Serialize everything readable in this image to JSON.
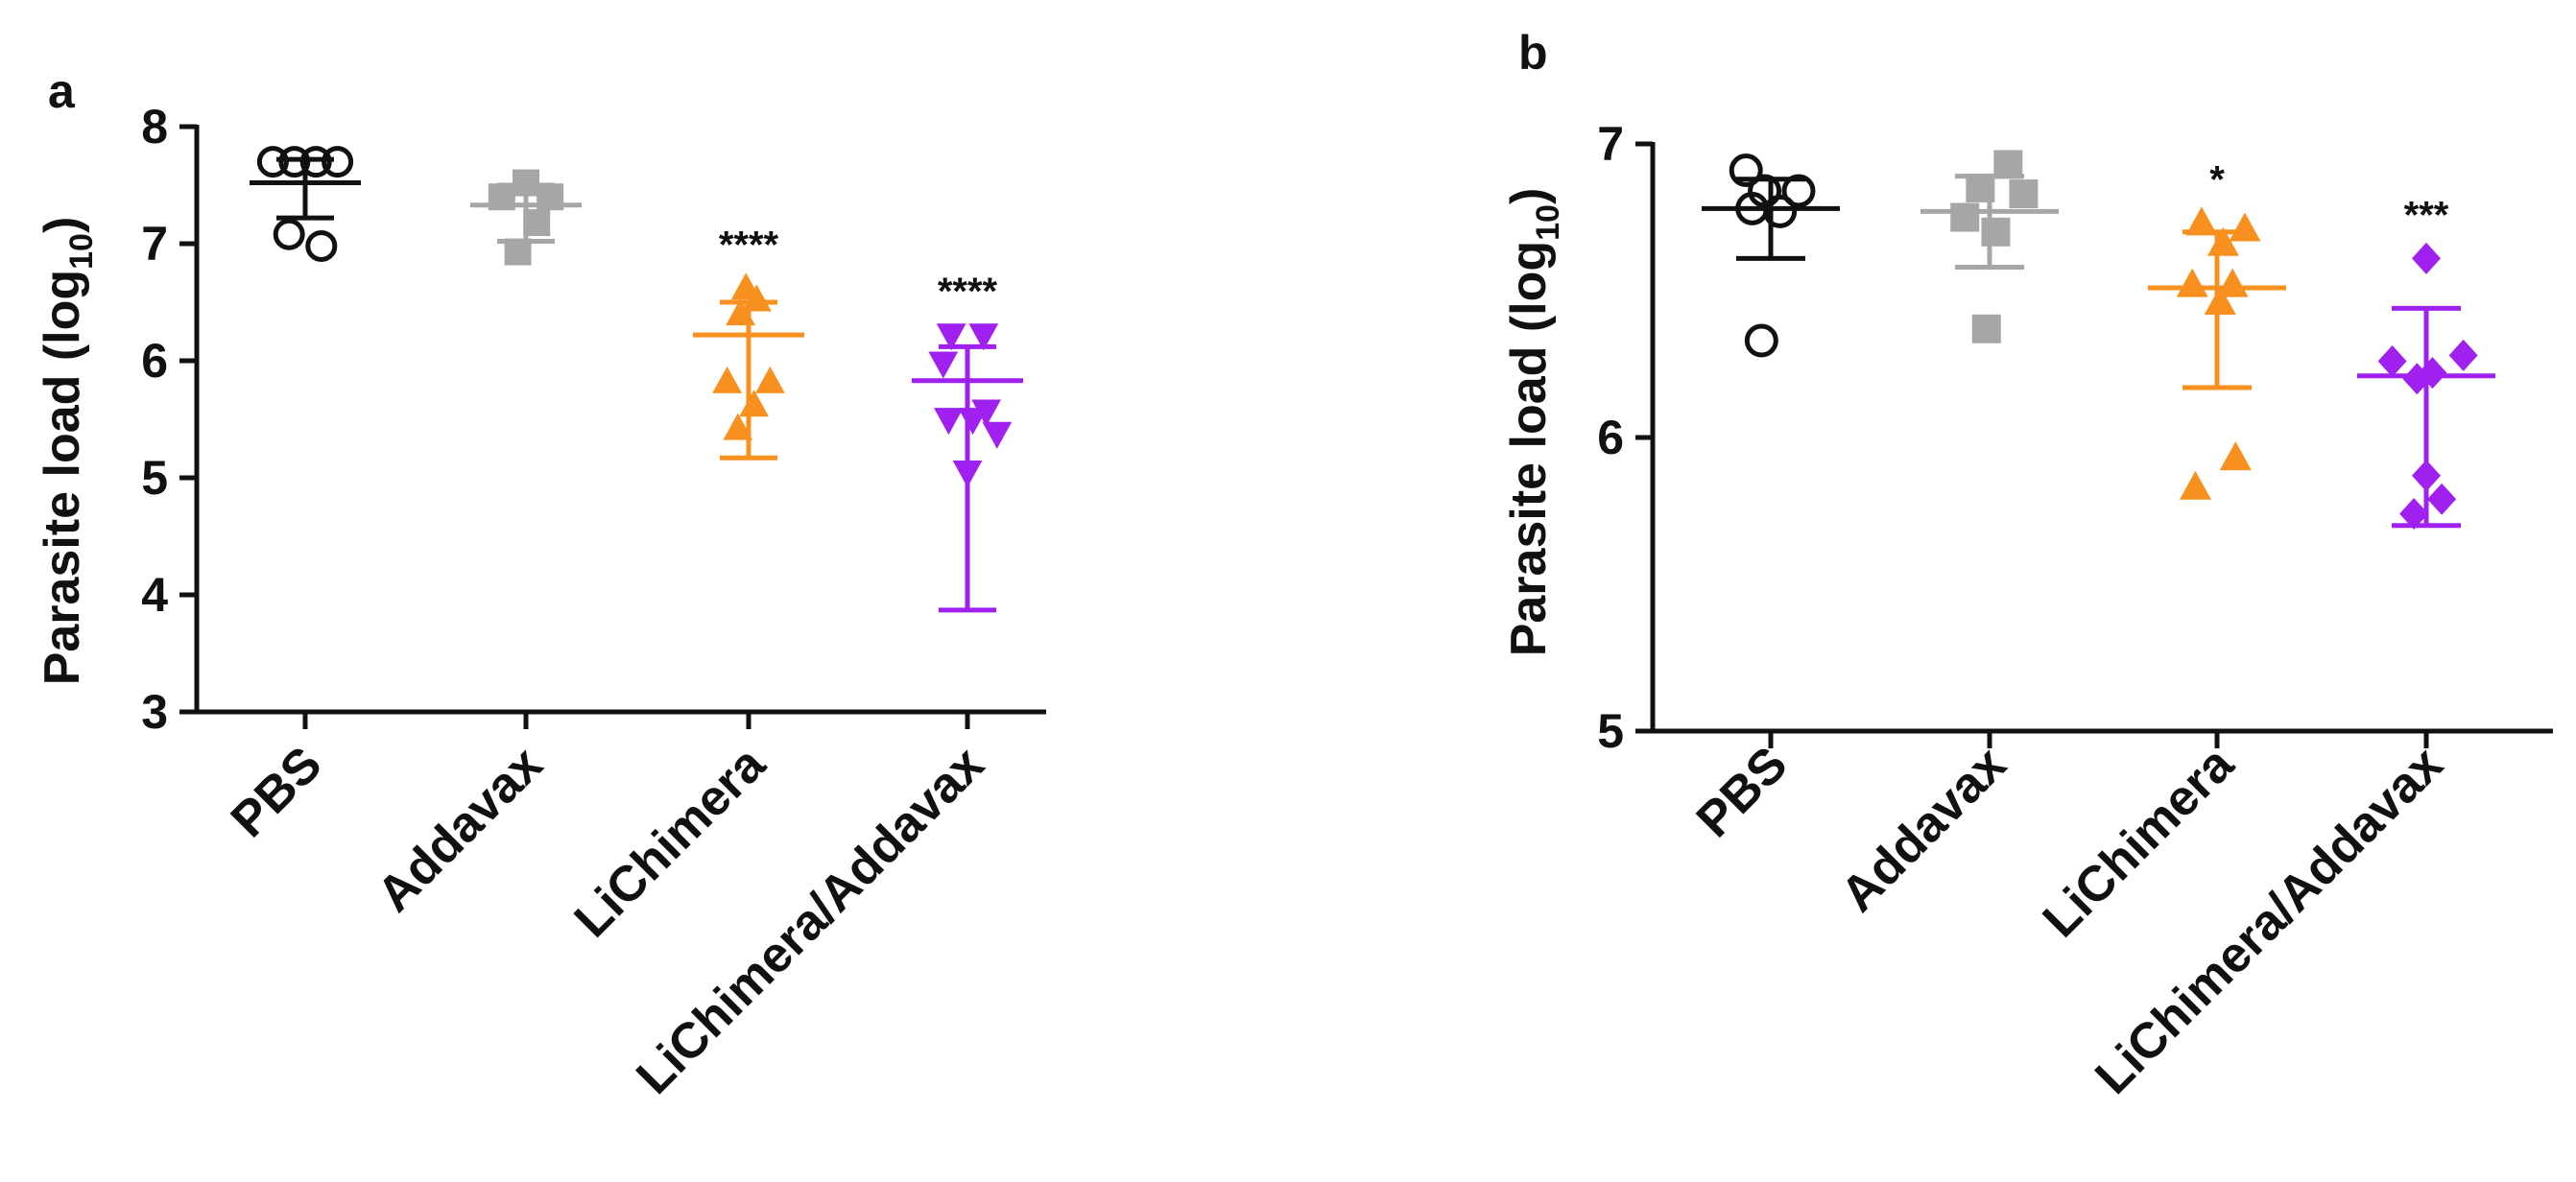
{
  "chart_data": [
    {
      "type": "scatter",
      "panel": "a",
      "ylabel": "Parasite load (log",
      "ylabel_sub": "10",
      "ylabel_close": ")",
      "ylim": [
        3,
        8
      ],
      "yticks": [
        "3",
        "4",
        "5",
        "6",
        "7",
        "8"
      ],
      "categories": [
        "PBS",
        "Addavax",
        "LiChimera",
        "LiChimera/Addavax"
      ],
      "groups": [
        {
          "name": "PBS",
          "color": "#111111",
          "marker": "circle-open",
          "mean": 7.52,
          "sd_low": 7.22,
          "sd_high": 7.72,
          "points": [
            7.7,
            7.7,
            7.7,
            7.7,
            7.08,
            6.98
          ],
          "offsets": [
            -0.6,
            -0.2,
            0.2,
            0.6,
            -0.3,
            0.3
          ],
          "significance": ""
        },
        {
          "name": "Addavax",
          "color": "#a6a6a6",
          "marker": "square",
          "mean": 7.33,
          "sd_low": 7.02,
          "sd_high": 7.5,
          "points": [
            7.52,
            7.4,
            7.4,
            7.18,
            6.93
          ],
          "offsets": [
            0.0,
            -0.45,
            0.45,
            0.2,
            -0.15
          ],
          "significance": ""
        },
        {
          "name": "LiChimera",
          "color": "#f7901e",
          "marker": "triangle-up",
          "mean": 6.22,
          "sd_low": 5.17,
          "sd_high": 6.5,
          "points": [
            6.62,
            6.52,
            6.4,
            5.82,
            5.82,
            5.62,
            5.42
          ],
          "offsets": [
            -0.05,
            0.15,
            -0.15,
            -0.4,
            0.4,
            0.1,
            -0.2
          ],
          "significance": "****"
        },
        {
          "name": "LiChimera/Addavax",
          "color": "#a020f0",
          "marker": "triangle-down",
          "mean": 5.83,
          "sd_low": 3.87,
          "sd_high": 6.12,
          "points": [
            6.22,
            6.22,
            5.98,
            5.57,
            5.5,
            5.5,
            5.38,
            5.05
          ],
          "offsets": [
            -0.3,
            0.3,
            -0.45,
            0.35,
            -0.35,
            0.1,
            0.55,
            0.0
          ],
          "significance": "****"
        }
      ],
      "grid": false
    },
    {
      "type": "scatter",
      "panel": "b",
      "ylabel": "Parasite load (log",
      "ylabel_sub": "10",
      "ylabel_close": ")",
      "ylim": [
        5,
        7
      ],
      "yticks": [
        "5",
        "6",
        "7"
      ],
      "categories": [
        "PBS",
        "Addavax",
        "LiChimera",
        "LiChimera/Addavax"
      ],
      "groups": [
        {
          "name": "PBS",
          "color": "#111111",
          "marker": "circle-open",
          "mean": 6.78,
          "sd_low": 6.61,
          "sd_high": 6.88,
          "points": [
            6.91,
            6.84,
            6.84,
            6.78,
            6.77,
            6.33
          ],
          "offsets": [
            -0.4,
            -0.1,
            0.45,
            -0.3,
            0.15,
            -0.15
          ],
          "significance": ""
        },
        {
          "name": "Addavax",
          "color": "#a6a6a6",
          "marker": "square",
          "mean": 6.77,
          "sd_low": 6.58,
          "sd_high": 6.89,
          "points": [
            6.93,
            6.85,
            6.83,
            6.75,
            6.7,
            6.37
          ],
          "offsets": [
            0.3,
            -0.15,
            0.55,
            -0.4,
            0.1,
            -0.05
          ],
          "significance": ""
        },
        {
          "name": "LiChimera",
          "color": "#f7901e",
          "marker": "triangle-up",
          "mean": 6.51,
          "sd_low": 6.17,
          "sd_high": 6.7,
          "points": [
            6.73,
            6.71,
            6.66,
            6.52,
            6.52,
            6.46,
            5.93,
            5.83
          ],
          "offsets": [
            -0.25,
            0.45,
            0.1,
            -0.4,
            0.25,
            0.05,
            0.3,
            -0.35
          ],
          "significance": "*"
        },
        {
          "name": "LiChimera/Addavax",
          "color": "#a020f0",
          "marker": "diamond",
          "mean": 6.21,
          "sd_low": 5.7,
          "sd_high": 6.44,
          "points": [
            6.61,
            6.28,
            6.26,
            6.22,
            6.2,
            5.87,
            5.79,
            5.74
          ],
          "offsets": [
            0.0,
            0.6,
            -0.55,
            0.1,
            -0.15,
            0.0,
            0.25,
            -0.2
          ],
          "significance": "***"
        }
      ],
      "grid": false
    }
  ]
}
